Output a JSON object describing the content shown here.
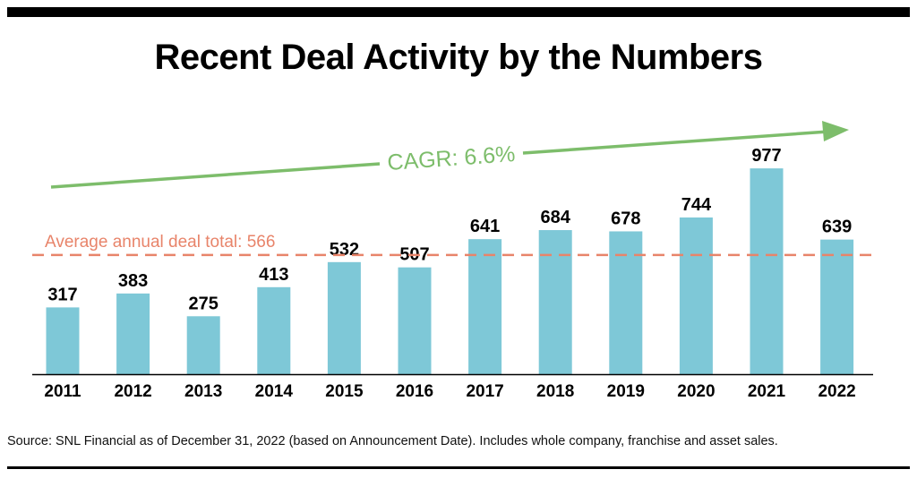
{
  "title": "Recent Deal Activity by the Numbers",
  "source": "Source: SNL Financial as of December 31, 2022 (based on Announcement Date).  Includes whole company, franchise and asset sales.",
  "colors": {
    "bar": "#7ec8d7",
    "average_line": "#e8846a",
    "cagr_arrow": "#7dbd6b",
    "text": "#000000"
  },
  "chart_data": {
    "type": "bar",
    "title": "Recent Deal Activity by the Numbers",
    "categories": [
      "2011",
      "2012",
      "2013",
      "2014",
      "2015",
      "2016",
      "2017",
      "2018",
      "2019",
      "2020",
      "2021",
      "2022"
    ],
    "values": [
      317,
      383,
      275,
      413,
      532,
      507,
      641,
      684,
      678,
      744,
      977,
      639
    ],
    "data_labels": [
      "317",
      "383",
      "275",
      "413",
      "532",
      "507",
      "641",
      "684",
      "678",
      "744",
      "977",
      "639"
    ],
    "average": {
      "value": 566,
      "label": "Average annual deal total: 566"
    },
    "cagr": {
      "label": "CAGR: 6.6%"
    },
    "ylim": [
      0,
      1200
    ],
    "grid": false,
    "legend": "none"
  }
}
